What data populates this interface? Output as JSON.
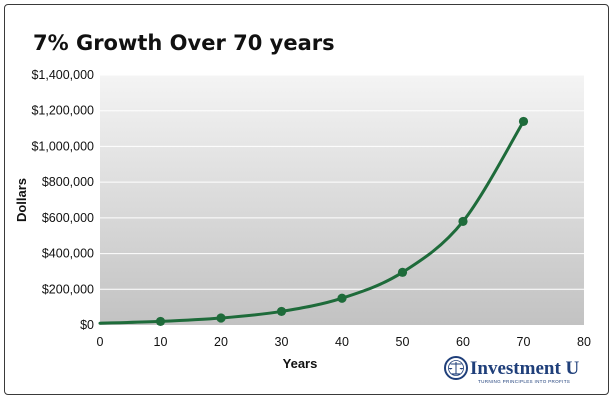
{
  "chart_data": {
    "type": "line",
    "title": "7% Growth Over 70 years",
    "xlabel": "Years",
    "ylabel": "Dollars",
    "xlim": [
      0,
      80
    ],
    "ylim": [
      0,
      1400000
    ],
    "x_ticks": [
      0,
      10,
      20,
      30,
      40,
      50,
      60,
      70,
      80
    ],
    "x_tick_labels": [
      "0",
      "10",
      "20",
      "30",
      "40",
      "50",
      "60",
      "70",
      "80"
    ],
    "y_ticks": [
      0,
      200000,
      400000,
      600000,
      800000,
      1000000,
      1200000,
      1400000
    ],
    "y_tick_labels": [
      "$0",
      "$200,000",
      "$400,000",
      "$600,000",
      "$800,000",
      "$1,000,000",
      "$1,200,000",
      "$1,400,000"
    ],
    "grid": true,
    "series": [
      {
        "x": [
          10,
          20,
          30,
          40,
          50,
          60,
          70
        ],
        "values": [
          20000,
          39000,
          76000,
          150000,
          295000,
          580000,
          1140000
        ],
        "curve_start": [
          0,
          10000
        ],
        "color": "#1e6b3a"
      }
    ]
  },
  "branding": {
    "name": "Investment U",
    "tagline": "TURNING PRINCIPLES INTO PROFITS",
    "color": "#1f3f7a",
    "icon": "scales-of-justice-icon"
  }
}
